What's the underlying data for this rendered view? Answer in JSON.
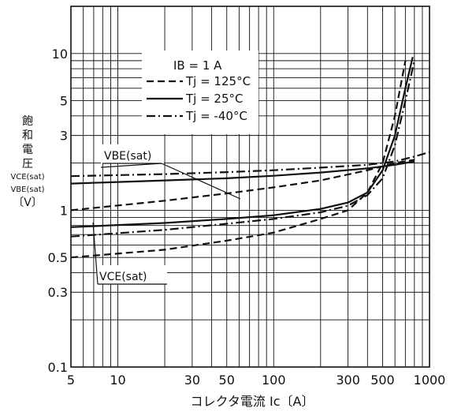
{
  "chart_data": {
    "type": "line",
    "x_scale": "log",
    "y_scale": "log",
    "xlim": [
      5,
      1000
    ],
    "ylim": [
      0.1,
      20
    ],
    "xlabel": "コレクタ電流 Ic〔A〕",
    "ylabel_lines": [
      "飽",
      "和",
      "電",
      "圧",
      "VCE(sat)",
      "VBE(sat)",
      "〔V〕"
    ],
    "x_ticks": [
      {
        "value": 5,
        "label": "5"
      },
      {
        "value": 10,
        "label": "10"
      },
      {
        "value": 30,
        "label": "30"
      },
      {
        "value": 50,
        "label": "50"
      },
      {
        "value": 100,
        "label": "100"
      },
      {
        "value": 300,
        "label": "300"
      },
      {
        "value": 500,
        "label": "500"
      },
      {
        "value": 1000,
        "label": "1000"
      }
    ],
    "y_ticks": [
      {
        "value": 0.1,
        "label": "0.1"
      },
      {
        "value": 0.3,
        "label": "0.3"
      },
      {
        "value": 0.5,
        "label": "0.5"
      },
      {
        "value": 1,
        "label": "1"
      },
      {
        "value": 3,
        "label": "3"
      },
      {
        "value": 5,
        "label": "5"
      },
      {
        "value": 10,
        "label": "10"
      }
    ],
    "legend": {
      "title": "IB = 1  A",
      "entries": [
        {
          "label": "Tj = 125°C",
          "style": "dashed"
        },
        {
          "label": "Tj = 25°C",
          "style": "solid"
        },
        {
          "label": "Tj = -40°C",
          "style": "dashdot"
        }
      ]
    },
    "annotations": [
      {
        "text": "VBE(sat)",
        "x": 11,
        "y": 2.1
      },
      {
        "text": "VCE(sat)",
        "x": 7.3,
        "y": 0.42
      }
    ],
    "series": [
      {
        "name": "VBE(sat) Tj=125°C",
        "style": "dashed",
        "x": [
          5,
          20,
          50,
          100,
          200,
          400,
          600,
          800
        ],
        "y": [
          1.0,
          1.15,
          1.28,
          1.4,
          1.55,
          1.8,
          2.0,
          2.1
        ]
      },
      {
        "name": "VBE(sat) Tj=25°C",
        "style": "solid",
        "x": [
          5,
          20,
          50,
          100,
          200,
          400,
          600,
          800
        ],
        "y": [
          1.48,
          1.55,
          1.6,
          1.66,
          1.74,
          1.85,
          1.95,
          2.05
        ]
      },
      {
        "name": "VBE(sat) Tj=-40°C",
        "style": "dashdot",
        "x": [
          5,
          20,
          50,
          100,
          200,
          400,
          600,
          800,
          1000
        ],
        "y": [
          1.65,
          1.7,
          1.75,
          1.8,
          1.87,
          1.95,
          2.05,
          2.2,
          2.35
        ]
      },
      {
        "name": "VCE(sat) Tj=125°C",
        "style": "dashed",
        "x": [
          5,
          20,
          50,
          100,
          200,
          300,
          400,
          500,
          600,
          700
        ],
        "y": [
          0.5,
          0.56,
          0.64,
          0.72,
          0.88,
          1.0,
          1.3,
          2.0,
          4.0,
          9.0
        ]
      },
      {
        "name": "VCE(sat) Tj=25°C",
        "style": "solid",
        "x": [
          5,
          20,
          50,
          100,
          200,
          300,
          400,
          500,
          600,
          700,
          780
        ],
        "y": [
          0.78,
          0.83,
          0.88,
          0.93,
          1.02,
          1.12,
          1.3,
          1.8,
          3.0,
          6.0,
          9.5
        ]
      },
      {
        "name": "VCE(sat) Tj=-40°C",
        "style": "dashdot",
        "x": [
          5,
          20,
          50,
          100,
          200,
          300,
          400,
          500,
          600,
          700,
          800
        ],
        "y": [
          0.68,
          0.75,
          0.82,
          0.88,
          0.97,
          1.07,
          1.25,
          1.6,
          2.6,
          5.0,
          9.0
        ]
      }
    ]
  }
}
